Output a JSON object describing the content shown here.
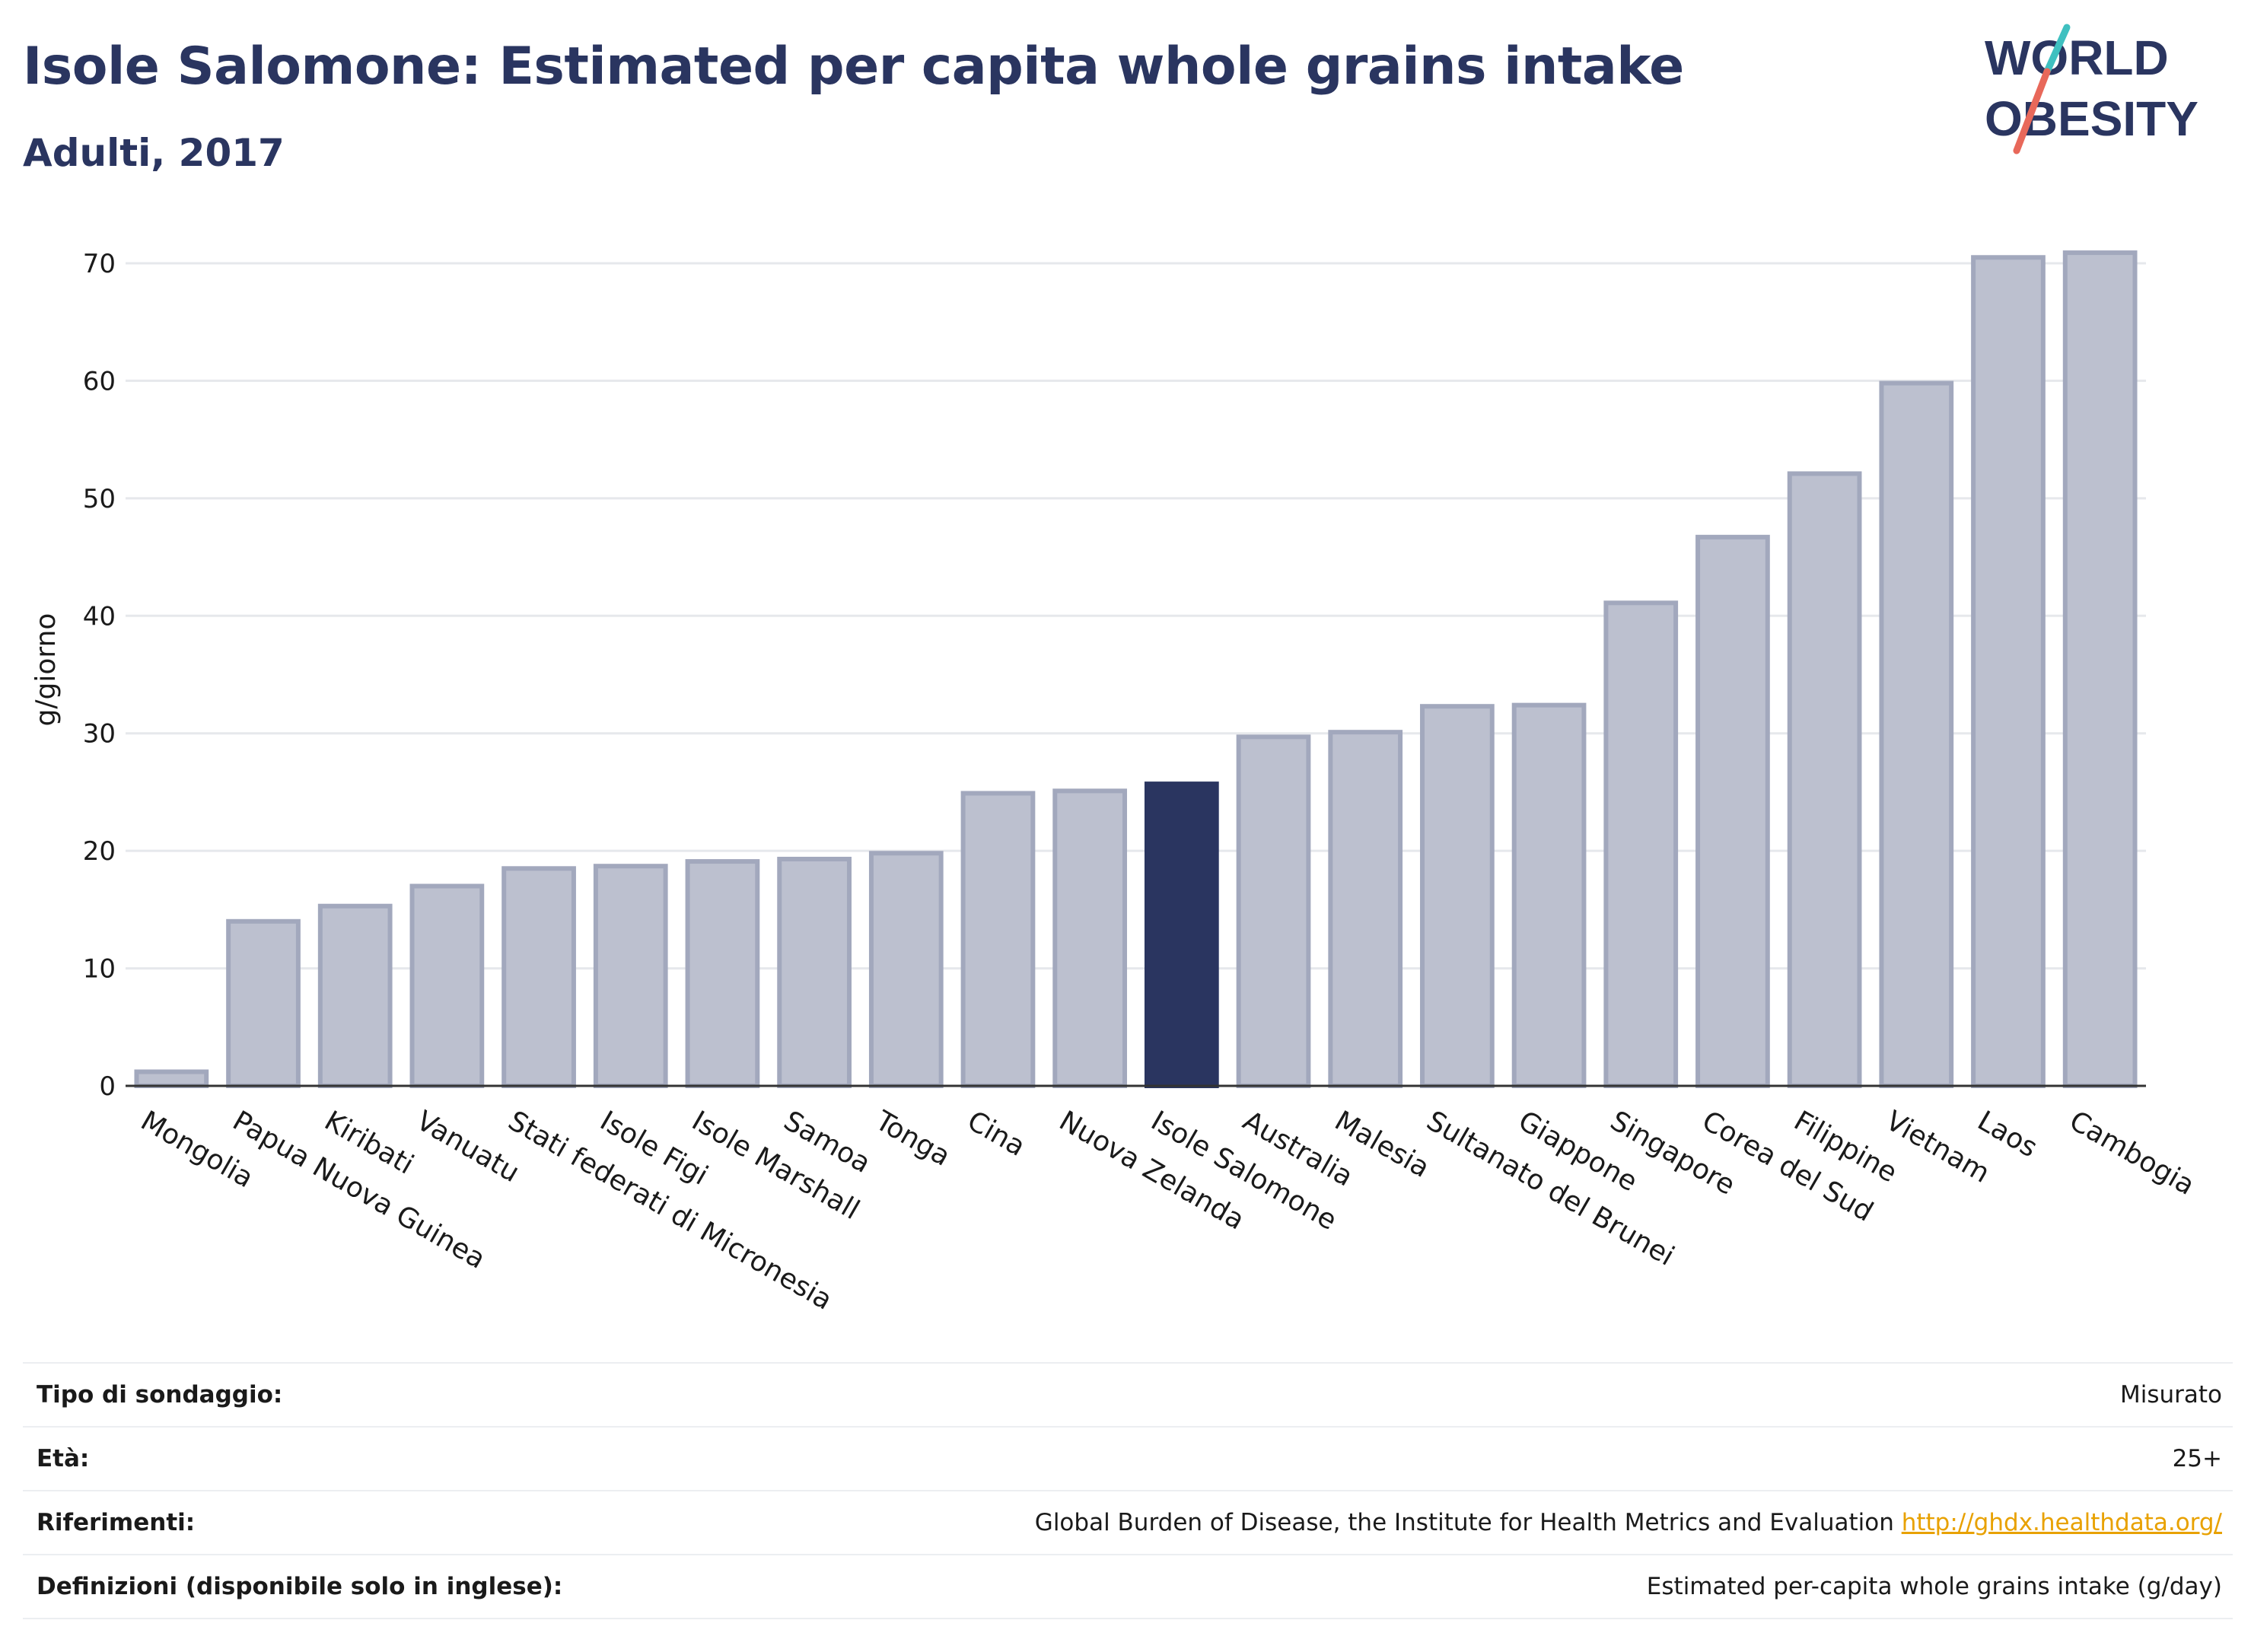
{
  "header": {
    "title": "Isole Salomone: Estimated per capita whole grains intake",
    "subtitle": "Adulti, 2017"
  },
  "logo": {
    "line1": "WORLD",
    "line2": "OBESITY"
  },
  "chart_data": {
    "type": "bar",
    "ylabel": "g/giorno",
    "ylim": [
      0,
      70
    ],
    "yticks": [
      0,
      10,
      20,
      30,
      40,
      50,
      60,
      70
    ],
    "grid": true,
    "categories": [
      "Mongolia",
      "Papua Nuova Guinea",
      "Kiribati",
      "Vanuatu",
      "Stati federati di Micronesia",
      "Isole Figi",
      "Isole Marshall",
      "Samoa",
      "Tonga",
      "Cina",
      "Nuova Zelanda",
      "Isole Salomone",
      "Australia",
      "Malesia",
      "Sultanato del Brunei",
      "Giappone",
      "Singapore",
      "Corea del Sud",
      "Filippine",
      "Vietnam",
      "Laos",
      "Cambogia"
    ],
    "values": [
      1.2,
      14.0,
      15.3,
      17.0,
      18.5,
      18.7,
      19.1,
      19.3,
      19.8,
      24.9,
      25.1,
      25.7,
      29.7,
      30.1,
      32.3,
      32.4,
      41.1,
      46.7,
      52.1,
      59.8,
      70.5,
      70.9
    ],
    "highlight": "Isole Salomone",
    "colors": {
      "bar": "#bcc0cf",
      "bar_edge": "#a2a8bd",
      "highlight": "#2a3560",
      "grid": "#e6e8ec",
      "axis": "#333333"
    }
  },
  "info": {
    "rows": [
      {
        "label": "Tipo di sondaggio:",
        "value": "Misurato"
      },
      {
        "label": "Età:",
        "value": "25+"
      },
      {
        "label": "Riferimenti:",
        "value": "Global Burden of Disease, the Institute for Health Metrics and Evaluation",
        "link": "http://ghdx.healthdata.org/"
      },
      {
        "label": "Definizioni (disponibile solo in inglese):",
        "value": "Estimated per-capita whole grains intake (g/day)"
      }
    ]
  }
}
